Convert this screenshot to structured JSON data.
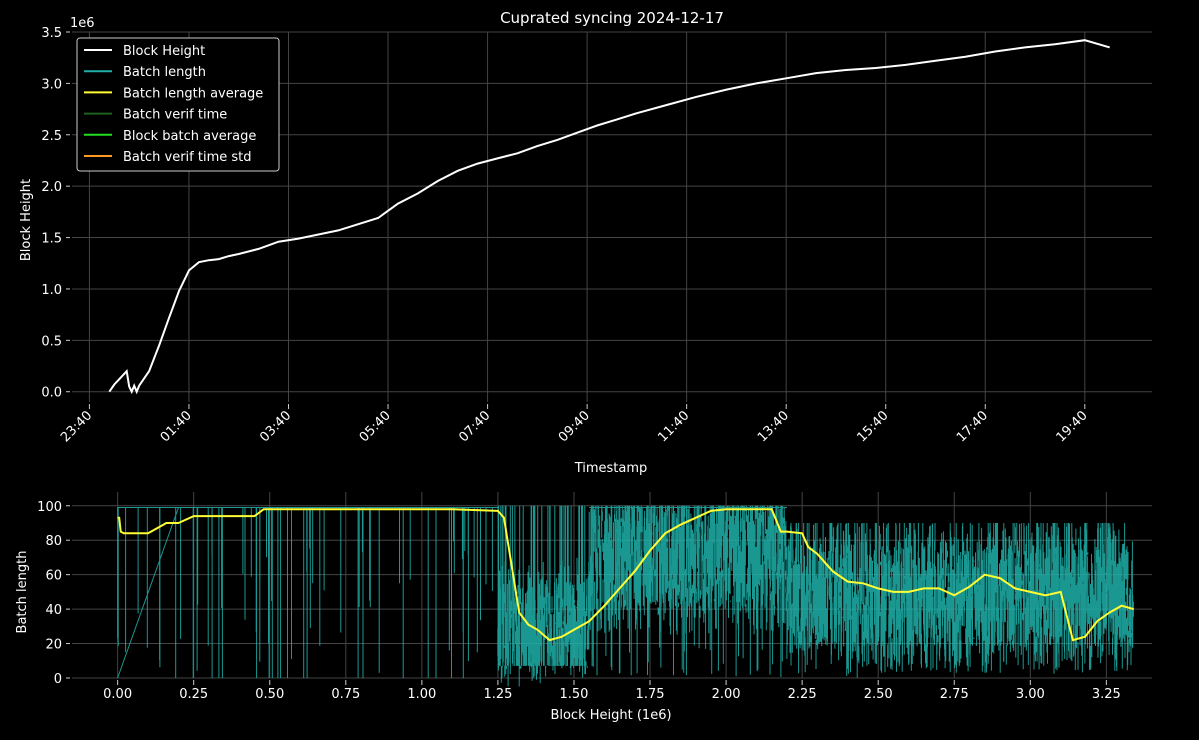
{
  "colors": {
    "background": "#000000",
    "grid": "#444444",
    "text": "#ffffff",
    "block_height": "#ffffff",
    "batch_length": "#20b2aa",
    "batch_length_average": "#ffff33",
    "batch_verif_time": "#1f5f1f",
    "block_batch_average": "#22dd22",
    "batch_verif_time_std": "#ff9922"
  },
  "chart_data": [
    {
      "type": "line",
      "title": "Cuprated syncing 2024-12-17",
      "xlabel": "Timestamp",
      "ylabel": "Block Height",
      "y_offset_label": "1e6",
      "grid": true,
      "legend_position": "top-left",
      "legend": [
        {
          "label": "Block Height",
          "color": "#ffffff"
        },
        {
          "label": "Batch length",
          "color": "#20b2aa"
        },
        {
          "label": "Batch length average",
          "color": "#ffff33"
        },
        {
          "label": "Batch verif time",
          "color": "#1f5f1f"
        },
        {
          "label": "Block batch average",
          "color": "#22dd22"
        },
        {
          "label": "Batch verif time std",
          "color": "#ff9922"
        }
      ],
      "x_ticks": [
        "23:40",
        "01:40",
        "03:40",
        "05:40",
        "07:40",
        "09:40",
        "11:40",
        "13:40",
        "15:40",
        "17:40",
        "19:40"
      ],
      "y_ticks": [
        "0.0",
        "0.5",
        "1.0",
        "1.5",
        "2.0",
        "2.5",
        "3.0",
        "3.5"
      ],
      "xlim_hours": [
        -0.35,
        21.35
      ],
      "ylim": [
        -0.1,
        3.5
      ],
      "series": [
        {
          "name": "Block Height",
          "unit": "1e6 blocks",
          "x_hours_since_2340": [
            0.4,
            0.5,
            0.75,
            0.8,
            0.85,
            0.9,
            0.95,
            1.0,
            1.2,
            1.4,
            1.6,
            1.8,
            2.0,
            2.2,
            2.4,
            2.6,
            2.8,
            3.0,
            3.4,
            3.8,
            4.2,
            4.6,
            5.0,
            5.4,
            5.8,
            6.2,
            6.6,
            7.0,
            7.4,
            7.8,
            8.2,
            8.6,
            9.0,
            9.4,
            9.8,
            10.2,
            10.6,
            11.0,
            11.6,
            12.2,
            12.8,
            13.4,
            14.0,
            14.6,
            15.2,
            15.8,
            16.4,
            17.0,
            17.6,
            18.2,
            18.8,
            19.4,
            20.0,
            20.5
          ],
          "y": [
            0.0,
            0.07,
            0.2,
            0.05,
            0.0,
            0.06,
            0.0,
            0.06,
            0.2,
            0.45,
            0.72,
            0.98,
            1.18,
            1.26,
            1.28,
            1.29,
            1.32,
            1.34,
            1.39,
            1.46,
            1.49,
            1.53,
            1.57,
            1.63,
            1.69,
            1.83,
            1.93,
            2.05,
            2.15,
            2.22,
            2.27,
            2.32,
            2.39,
            2.45,
            2.52,
            2.59,
            2.65,
            2.71,
            2.79,
            2.87,
            2.94,
            3.0,
            3.05,
            3.1,
            3.13,
            3.15,
            3.18,
            3.22,
            3.26,
            3.31,
            3.35,
            3.38,
            3.42,
            3.35
          ]
        }
      ]
    },
    {
      "type": "line",
      "xlabel": "Block Height (1e6)",
      "ylabel": "Batch length",
      "grid": true,
      "x_ticks": [
        "0.00",
        "0.25",
        "0.50",
        "0.75",
        "1.00",
        "1.25",
        "1.50",
        "1.75",
        "2.00",
        "2.25",
        "2.50",
        "2.75",
        "3.00",
        "3.25"
      ],
      "y_ticks": [
        "0",
        "20",
        "40",
        "60",
        "80",
        "100"
      ],
      "xlim": [
        -0.15,
        3.4
      ],
      "ylim": [
        0,
        108
      ],
      "series": [
        {
          "name": "Batch length",
          "regions": [
            {
              "x": [
                0.0,
                1.25
              ],
              "base": 99,
              "dips": "sparse deep spikes down to 0-20"
            },
            {
              "x": [
                1.25,
                1.55
              ],
              "range": [
                15,
                100
              ],
              "center": 25
            },
            {
              "x": [
                1.55,
                2.2
              ],
              "range": [
                20,
                100
              ],
              "center": 70
            },
            {
              "x": [
                2.2,
                3.34
              ],
              "range": [
                10,
                90
              ],
              "center": 48
            }
          ]
        },
        {
          "name": "Batch length average",
          "x": [
            0.0,
            0.005,
            0.01,
            0.02,
            0.04,
            0.1,
            0.15,
            0.16,
            0.2,
            0.25,
            0.35,
            0.45,
            0.48,
            0.6,
            0.7,
            0.85,
            1.0,
            1.1,
            1.25,
            1.27,
            1.28,
            1.3,
            1.32,
            1.35,
            1.38,
            1.42,
            1.46,
            1.5,
            1.55,
            1.6,
            1.65,
            1.7,
            1.75,
            1.8,
            1.85,
            1.9,
            1.95,
            2.0,
            2.05,
            2.1,
            2.15,
            2.18,
            2.2,
            2.25,
            2.27,
            2.3,
            2.35,
            2.4,
            2.45,
            2.5,
            2.55,
            2.6,
            2.65,
            2.7,
            2.75,
            2.8,
            2.85,
            2.9,
            2.95,
            3.0,
            3.05,
            3.1,
            3.14,
            3.18,
            3.22,
            3.26,
            3.3,
            3.34
          ],
          "y": [
            93,
            93,
            85,
            84,
            84,
            84,
            89,
            90,
            90,
            94,
            94,
            94,
            98,
            98,
            98,
            98,
            98,
            98,
            97,
            93,
            82,
            60,
            38,
            31,
            28,
            22,
            24,
            28,
            33,
            42,
            52,
            62,
            74,
            84,
            89,
            93,
            97,
            98,
            98,
            98,
            98,
            85,
            85,
            84,
            76,
            72,
            62,
            56,
            55,
            52,
            50,
            50,
            52,
            52,
            48,
            53,
            60,
            58,
            52,
            50,
            48,
            50,
            22,
            24,
            33,
            38,
            42,
            40
          ]
        }
      ]
    }
  ]
}
